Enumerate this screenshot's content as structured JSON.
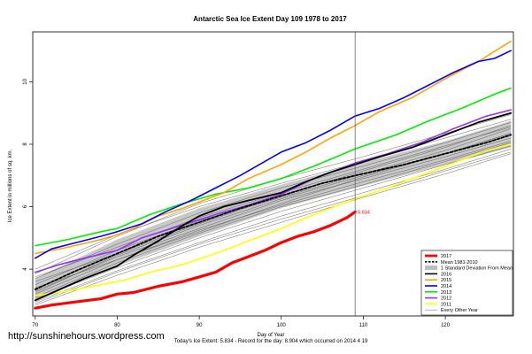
{
  "chart_data": {
    "type": "line",
    "title": "Antarctic Sea Ice Extent Day 109 1978 to 2017",
    "xlabel": "Day of Year",
    "ylabel": "Ice Extent in millions of sq. km.",
    "xlim": [
      69.7,
      128.3
    ],
    "ylim": [
      2.5,
      11.6
    ],
    "x_ticks": [
      "70",
      "80",
      "90",
      "100",
      "110",
      "120"
    ],
    "x_tick_values": [
      70,
      80,
      90,
      100,
      110,
      120
    ],
    "y_ticks": [
      "4",
      "6",
      "8",
      "10"
    ],
    "y_tick_values": [
      4,
      6,
      8,
      10
    ],
    "grid": false,
    "current_day": 109,
    "footnote": "Today's Ice Extent: 5.834 - Record for the day: 8.904 which occurred on 2014 4 19",
    "annotation": {
      "text": "5.834",
      "x": 109,
      "y": 5.834,
      "color": "#ff0000"
    },
    "legend_position": "bottom-right",
    "legend": [
      {
        "label": "2017",
        "style": "thick",
        "color": "#ff0000"
      },
      {
        "label": "Mean 1981-2010",
        "style": "dashed",
        "color": "#000000"
      },
      {
        "label": "1 Standard Deviation From Mean",
        "style": "band",
        "color": "#bdbdbd"
      },
      {
        "label": "2016",
        "style": "line",
        "color": "#000000"
      },
      {
        "label": "2015",
        "style": "line",
        "color": "#ffa500"
      },
      {
        "label": "2014",
        "style": "line",
        "color": "#0000ff"
      },
      {
        "label": "2013",
        "style": "line",
        "color": "#00ee00"
      },
      {
        "label": "2012",
        "style": "line",
        "color": "#9b30ff"
      },
      {
        "label": "2011",
        "style": "line",
        "color": "#ffff00"
      },
      {
        "label": "Every Other Year",
        "style": "thin",
        "color": "#808080"
      }
    ],
    "band": {
      "x": [
        70,
        80,
        90,
        100,
        109,
        120,
        128
      ],
      "upper": [
        3.7,
        4.95,
        5.95,
        6.7,
        7.35,
        8.1,
        8.75
      ],
      "lower": [
        3.0,
        4.1,
        5.05,
        5.95,
        6.6,
        7.35,
        7.9
      ]
    },
    "series": [
      {
        "name": "2017",
        "color": "#ff0000",
        "x": [
          70,
          72,
          75,
          78,
          80,
          82,
          85,
          88,
          90,
          92,
          94,
          96,
          98,
          100,
          102,
          104,
          106,
          108,
          109
        ],
        "y": [
          2.75,
          2.85,
          2.95,
          3.05,
          3.2,
          3.25,
          3.45,
          3.6,
          3.75,
          3.9,
          4.2,
          4.4,
          4.6,
          4.85,
          5.05,
          5.2,
          5.4,
          5.65,
          5.834
        ]
      },
      {
        "name": "Mean 1981-2010",
        "color": "#000000",
        "x": [
          70,
          75,
          80,
          85,
          90,
          95,
          100,
          105,
          109,
          115,
          120,
          125,
          128
        ],
        "y": [
          3.35,
          3.95,
          4.5,
          5.05,
          5.5,
          5.95,
          6.35,
          6.75,
          7.0,
          7.35,
          7.7,
          8.05,
          8.3
        ]
      },
      {
        "name": "2016",
        "color": "#000000",
        "x": [
          70,
          73,
          76,
          80,
          82,
          85,
          88,
          90,
          93,
          96,
          100,
          103,
          106,
          109,
          112,
          116,
          120,
          124,
          128
        ],
        "y": [
          3.0,
          3.35,
          3.7,
          4.1,
          4.45,
          4.9,
          5.4,
          5.7,
          6.0,
          6.2,
          6.45,
          6.8,
          7.1,
          7.35,
          7.6,
          7.9,
          8.3,
          8.7,
          9.0
        ]
      },
      {
        "name": "2015",
        "color": "#ffa500",
        "x": [
          70,
          74,
          78,
          80,
          82,
          85,
          88,
          90,
          93,
          96,
          100,
          103,
          106,
          109,
          112,
          116,
          120,
          124,
          128
        ],
        "y": [
          4.5,
          4.7,
          4.95,
          5.1,
          5.3,
          5.7,
          5.95,
          6.15,
          6.45,
          6.9,
          7.35,
          7.75,
          8.2,
          8.6,
          9.05,
          9.5,
          10.1,
          10.65,
          11.3
        ]
      },
      {
        "name": "2014",
        "color": "#0000ff",
        "x": [
          70,
          72,
          75,
          78,
          80,
          83,
          86,
          89,
          92,
          95,
          98,
          100,
          103,
          106,
          109,
          112,
          115,
          118,
          121,
          124,
          126,
          128
        ],
        "y": [
          4.35,
          4.65,
          4.85,
          5.05,
          5.2,
          5.45,
          5.85,
          6.2,
          6.6,
          7.0,
          7.45,
          7.75,
          8.05,
          8.45,
          8.904,
          9.15,
          9.5,
          9.9,
          10.3,
          10.65,
          10.75,
          11.0
        ]
      },
      {
        "name": "2013",
        "color": "#00ee00",
        "x": [
          70,
          74,
          78,
          80,
          84,
          88,
          92,
          96,
          100,
          104,
          109,
          114,
          118,
          122,
          126,
          128
        ],
        "y": [
          4.75,
          4.95,
          5.2,
          5.3,
          5.75,
          6.1,
          6.4,
          6.6,
          6.9,
          7.3,
          7.85,
          8.3,
          8.75,
          9.15,
          9.6,
          9.8
        ]
      },
      {
        "name": "2012",
        "color": "#9b30ff",
        "x": [
          70,
          73,
          76,
          80,
          83,
          86,
          89,
          92,
          96,
          100,
          104,
          109,
          113,
          117,
          121,
          125,
          128
        ],
        "y": [
          3.9,
          4.15,
          4.35,
          4.6,
          5.0,
          5.25,
          5.5,
          5.75,
          6.05,
          6.4,
          6.9,
          7.4,
          7.7,
          8.05,
          8.5,
          8.9,
          9.1
        ]
      },
      {
        "name": "2011",
        "color": "#ffff00",
        "x": [
          70,
          74,
          78,
          81,
          84,
          88,
          92,
          96,
          100,
          104,
          109,
          113,
          117,
          121,
          125,
          128
        ],
        "y": [
          3.15,
          3.3,
          3.5,
          3.65,
          3.9,
          4.15,
          4.5,
          4.9,
          5.3,
          5.75,
          6.25,
          6.6,
          7.0,
          7.4,
          7.8,
          8.0
        ]
      }
    ],
    "background_years": [
      {
        "x": [
          70,
          80,
          90,
          100,
          110,
          120,
          128
        ],
        "y": [
          3.1,
          4.2,
          5.15,
          6.0,
          6.7,
          7.45,
          8.05
        ]
      },
      {
        "x": [
          70,
          80,
          90,
          100,
          110,
          120,
          128
        ],
        "y": [
          3.5,
          4.6,
          5.55,
          6.3,
          7.05,
          7.8,
          8.5
        ]
      },
      {
        "x": [
          70,
          80,
          90,
          100,
          110,
          120,
          128
        ],
        "y": [
          2.95,
          3.95,
          4.85,
          5.7,
          6.45,
          7.2,
          7.85
        ]
      },
      {
        "x": [
          70,
          80,
          90,
          100,
          110,
          120,
          128
        ],
        "y": [
          3.7,
          4.8,
          5.8,
          6.6,
          7.3,
          8.05,
          8.7
        ]
      },
      {
        "x": [
          70,
          80,
          90,
          100,
          110,
          120,
          128
        ],
        "y": [
          3.3,
          4.4,
          5.3,
          6.2,
          6.9,
          7.6,
          8.2
        ]
      },
      {
        "x": [
          70,
          80,
          90,
          100,
          110,
          120,
          128
        ],
        "y": [
          3.85,
          5.05,
          6.1,
          6.9,
          7.6,
          8.35,
          8.95
        ]
      },
      {
        "x": [
          70,
          80,
          90,
          100,
          110,
          120,
          128
        ],
        "y": [
          2.85,
          3.8,
          4.7,
          5.5,
          6.3,
          7.05,
          7.7
        ]
      },
      {
        "x": [
          70,
          80,
          90,
          100,
          110,
          120,
          128
        ],
        "y": [
          3.6,
          4.5,
          5.45,
          6.35,
          7.15,
          7.9,
          8.6
        ]
      },
      {
        "x": [
          70,
          80,
          90,
          100,
          110,
          120,
          128
        ],
        "y": [
          3.2,
          4.3,
          5.25,
          6.05,
          6.8,
          7.5,
          8.1
        ]
      },
      {
        "x": [
          70,
          80,
          90,
          100,
          110,
          120,
          128
        ],
        "y": [
          4.0,
          5.1,
          6.0,
          6.75,
          7.45,
          8.2,
          8.8
        ]
      },
      {
        "x": [
          70,
          80,
          90,
          100,
          110,
          120,
          128
        ],
        "y": [
          3.4,
          4.3,
          5.2,
          6.1,
          6.95,
          7.7,
          8.35
        ]
      },
      {
        "x": [
          70,
          80,
          90,
          100,
          110,
          120,
          128
        ],
        "y": [
          3.05,
          4.05,
          5.0,
          5.85,
          6.6,
          7.35,
          7.95
        ]
      },
      {
        "x": [
          70,
          80,
          90,
          100,
          110,
          120,
          128
        ],
        "y": [
          3.75,
          4.7,
          5.65,
          6.45,
          7.2,
          7.95,
          8.55
        ]
      },
      {
        "x": [
          70,
          80,
          90,
          100,
          110,
          120,
          128
        ],
        "y": [
          3.25,
          4.45,
          5.4,
          6.25,
          7.0,
          7.7,
          8.35
        ]
      },
      {
        "x": [
          70,
          80,
          90,
          100,
          110,
          120,
          128
        ],
        "y": [
          2.9,
          3.9,
          4.8,
          5.6,
          6.35,
          7.15,
          7.75
        ]
      }
    ]
  },
  "watermark": "http://sunshinehours.wordpress.com"
}
